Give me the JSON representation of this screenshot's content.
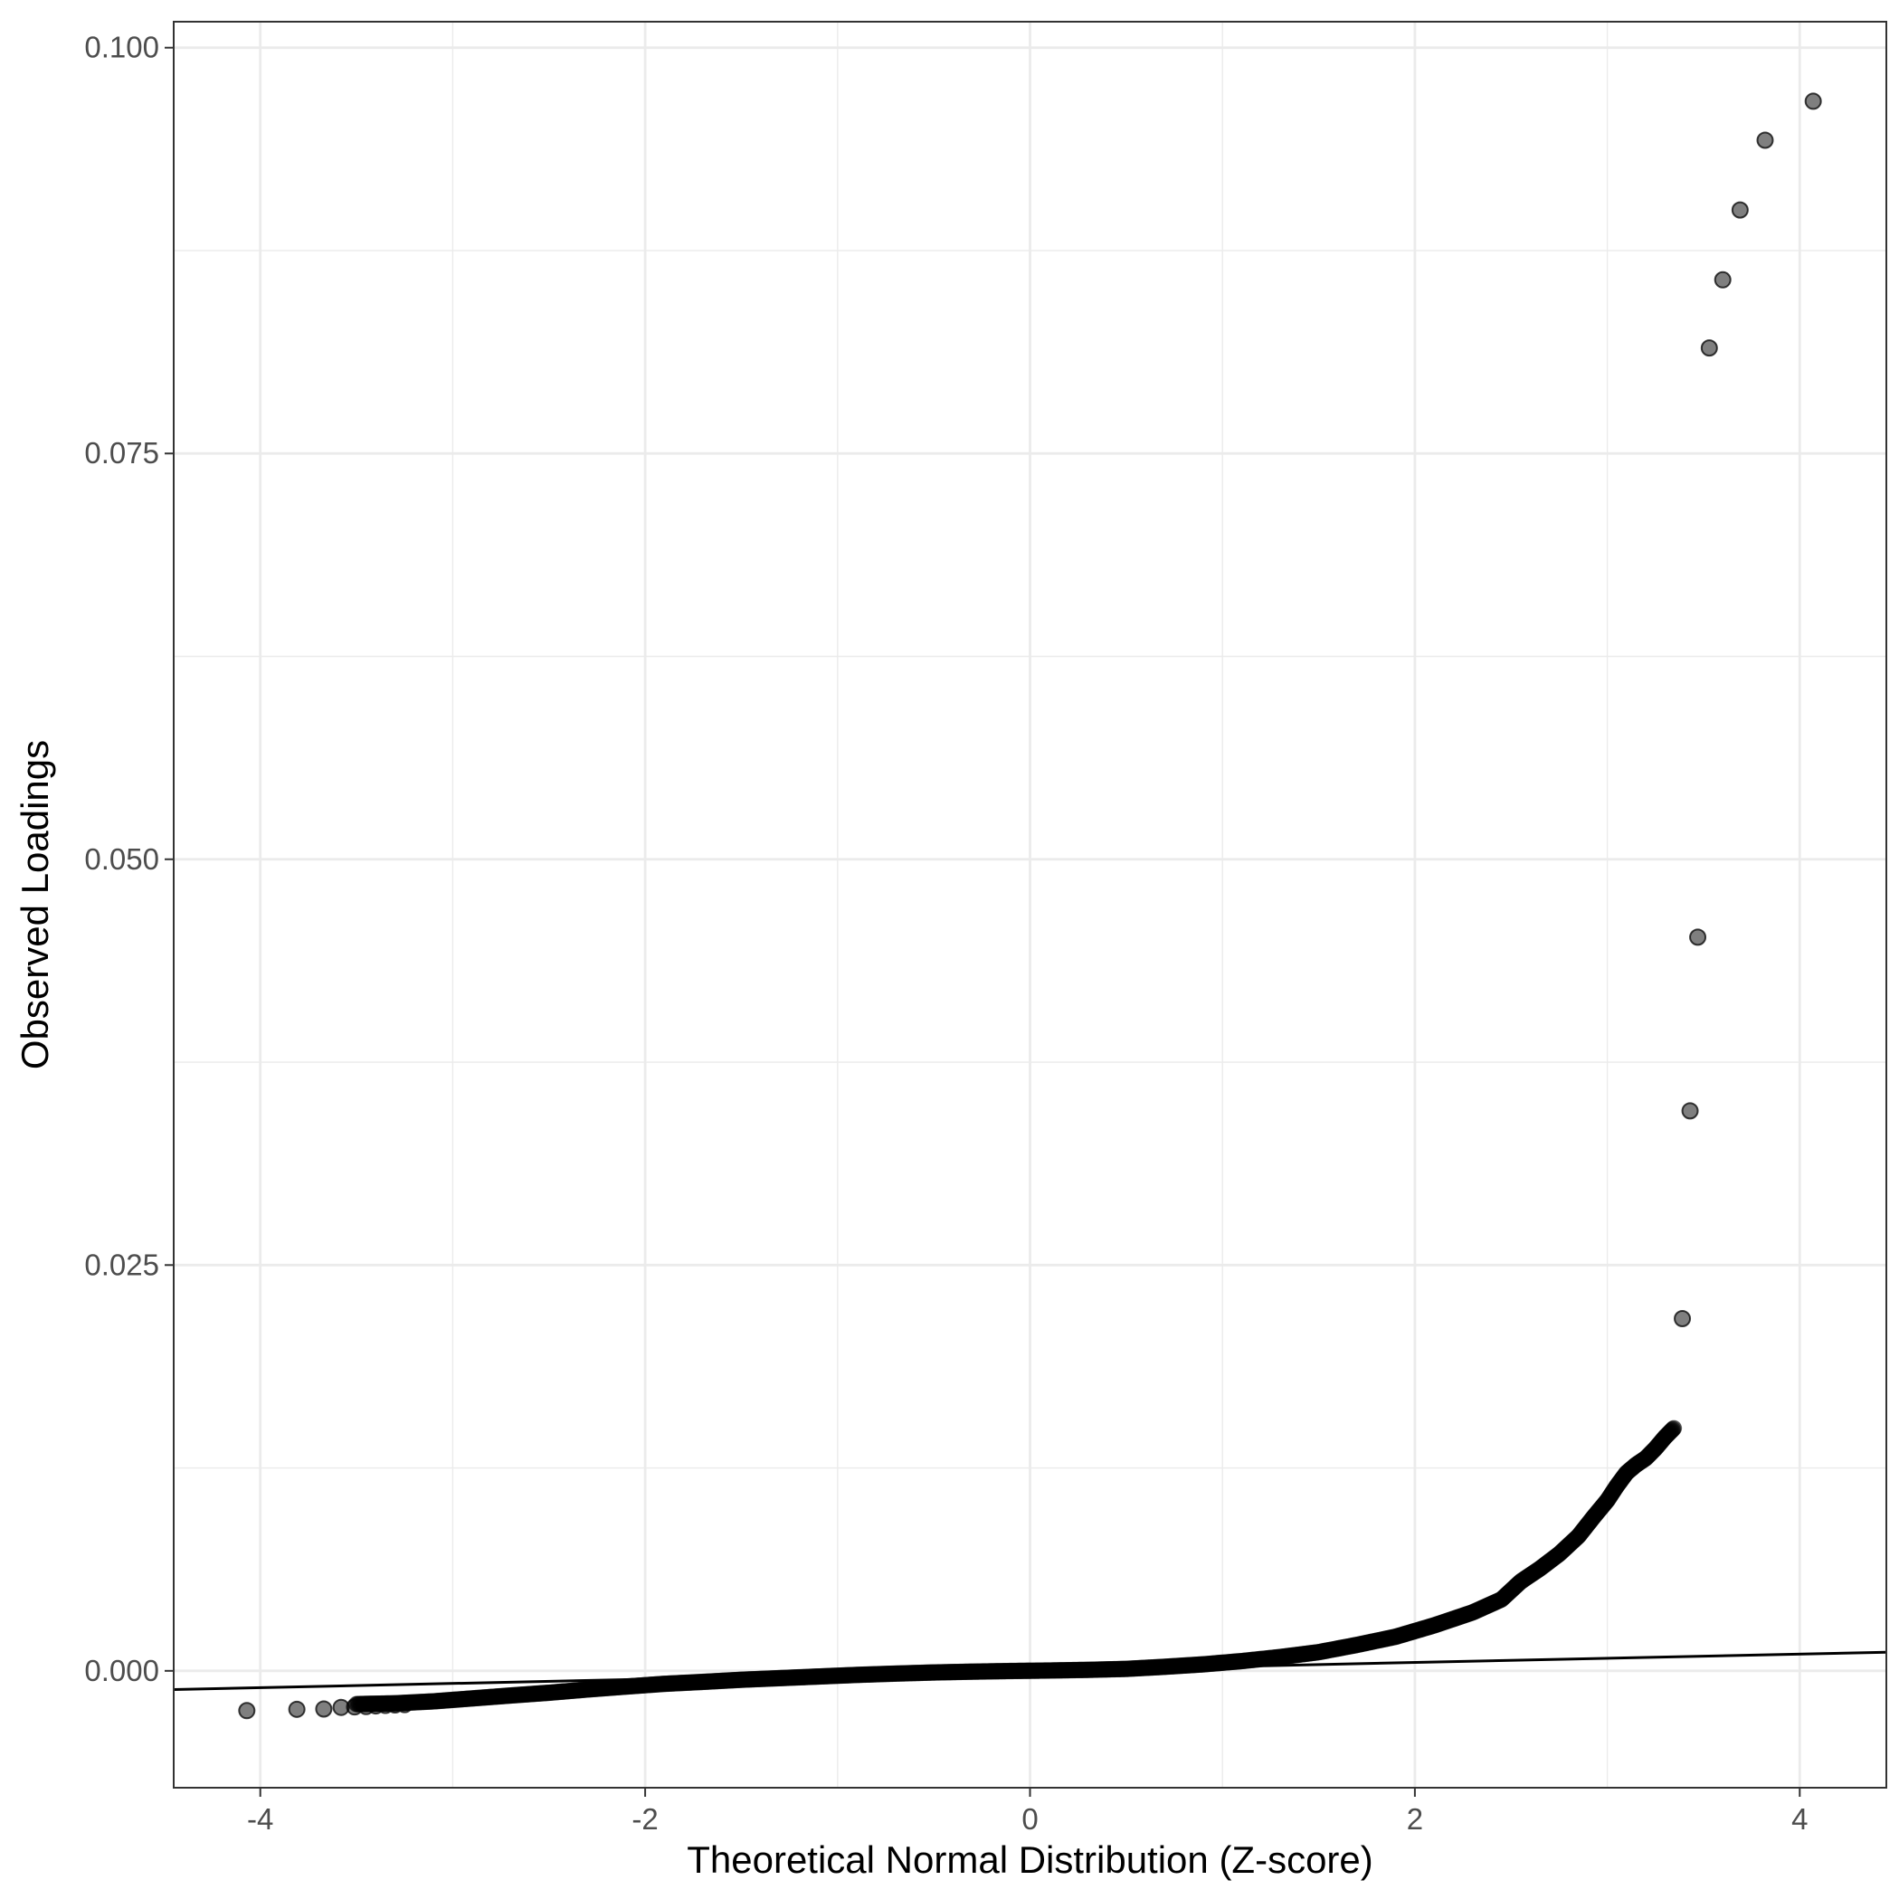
{
  "chart_data": {
    "type": "scatter",
    "title": "",
    "xlabel": "Theoretical Normal Distribution (Z-score)",
    "ylabel": "Observed Loadings",
    "xlim": [
      -4.45,
      4.45
    ],
    "ylim": [
      -0.0072,
      0.1016
    ],
    "x_ticks": [
      -4,
      -2,
      0,
      2,
      4
    ],
    "x_tick_labels": [
      "-4",
      "-2",
      "0",
      "2",
      "4"
    ],
    "x_minor_ticks": [
      -3,
      -1,
      1,
      3
    ],
    "y_ticks": [
      0.0,
      0.025,
      0.05,
      0.075,
      0.1
    ],
    "y_tick_labels": [
      "0.000",
      "0.025",
      "0.050",
      "0.075",
      "0.100"
    ],
    "y_minor_ticks": [
      0.0125,
      0.0375,
      0.0625,
      0.0875
    ],
    "grid": true,
    "theme": "bw",
    "point_color": "#000000",
    "point_opacity": 0.5,
    "reference_line": {
      "color": "#000000",
      "points": [
        [
          -4.45,
          -0.00115
        ],
        [
          4.45,
          0.00115
        ]
      ]
    },
    "bulk_curve": [
      [
        -3.5,
        -0.00205
      ],
      [
        -3.3,
        -0.002
      ],
      [
        -3.1,
        -0.00188
      ],
      [
        -2.9,
        -0.0017
      ],
      [
        -2.7,
        -0.00152
      ],
      [
        -2.5,
        -0.00135
      ],
      [
        -2.3,
        -0.00115
      ],
      [
        -2.1,
        -0.00097
      ],
      [
        -1.9,
        -0.0008
      ],
      [
        -1.7,
        -0.00068
      ],
      [
        -1.5,
        -0.00055
      ],
      [
        -1.3,
        -0.00045
      ],
      [
        -1.1,
        -0.00035
      ],
      [
        -0.9,
        -0.00025
      ],
      [
        -0.7,
        -0.00017
      ],
      [
        -0.5,
        -0.0001
      ],
      [
        -0.3,
        -5e-05
      ],
      [
        -0.1,
        -1e-05
      ],
      [
        0.1,
        2e-05
      ],
      [
        0.3,
        6e-05
      ],
      [
        0.5,
        0.00012
      ],
      [
        0.7,
        0.00025
      ],
      [
        0.9,
        0.0004
      ],
      [
        1.1,
        0.0006
      ],
      [
        1.3,
        0.00085
      ],
      [
        1.5,
        0.00115
      ],
      [
        1.7,
        0.0016
      ],
      [
        1.9,
        0.0021
      ],
      [
        2.1,
        0.0028
      ],
      [
        2.3,
        0.0036
      ],
      [
        2.45,
        0.0044
      ],
      [
        2.55,
        0.0055
      ],
      [
        2.65,
        0.0063
      ],
      [
        2.75,
        0.0072
      ],
      [
        2.85,
        0.0083
      ],
      [
        2.93,
        0.0095
      ],
      [
        3.0,
        0.0105
      ],
      [
        3.05,
        0.0114
      ],
      [
        3.1,
        0.0122
      ],
      [
        3.15,
        0.0127
      ],
      [
        3.2,
        0.0131
      ],
      [
        3.25,
        0.0137
      ],
      [
        3.3,
        0.0144
      ],
      [
        3.35,
        0.015
      ]
    ],
    "points": [
      [
        -4.07,
        -0.00245
      ],
      [
        -3.81,
        -0.00237
      ],
      [
        -3.67,
        -0.00235
      ],
      [
        -3.58,
        -0.00225
      ],
      [
        -3.51,
        -0.00222
      ],
      [
        -3.45,
        -0.0022
      ],
      [
        -3.4,
        -0.00216
      ],
      [
        -3.35,
        -0.00213
      ],
      [
        -3.3,
        -0.0021
      ],
      [
        -3.25,
        -0.00208
      ],
      [
        3.39,
        0.0217
      ],
      [
        3.43,
        0.0345
      ],
      [
        3.47,
        0.0452
      ],
      [
        3.53,
        0.0815
      ],
      [
        3.6,
        0.0857
      ],
      [
        3.69,
        0.09
      ],
      [
        3.82,
        0.0943
      ],
      [
        4.07,
        0.0967
      ]
    ]
  }
}
